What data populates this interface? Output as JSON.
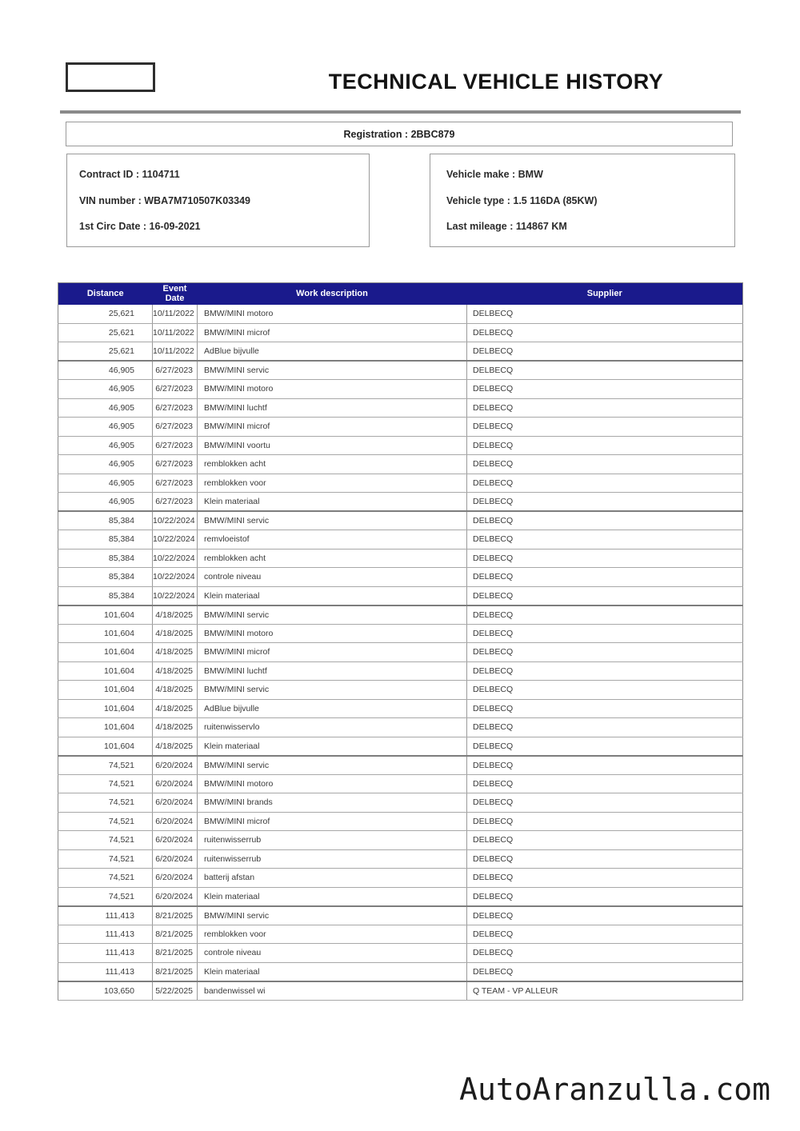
{
  "colors": {
    "header_bg": "#1a1a8c",
    "border_gray": "#9a9a9a",
    "rule_gray": "#8a8a8a"
  },
  "page": {
    "title": "TECHNICAL VEHICLE HISTORY",
    "watermark": "AutoAranzulla.com"
  },
  "registration": {
    "label": "Registration : 2BBC879"
  },
  "contract_info": {
    "lines": [
      "Contract ID : 1104711",
      "VIN number : WBA7M710507K03349",
      "1st Circ Date : 16-09-2021"
    ]
  },
  "vehicle_info": {
    "lines": [
      "Vehicle make : BMW",
      "Vehicle type : 1.5 116DA (85KW)",
      "Last mileage : 114867 KM"
    ]
  },
  "table": {
    "columns": [
      "Distance",
      "Event Date",
      "Work description",
      "Supplier"
    ],
    "rows": [
      {
        "distance": "25,621",
        "date": "10/11/2022",
        "work": "BMW/MINI motoro",
        "supplier": "DELBECQ"
      },
      {
        "distance": "25,621",
        "date": "10/11/2022",
        "work": "BMW/MINI microf",
        "supplier": "DELBECQ"
      },
      {
        "distance": "25,621",
        "date": "10/11/2022",
        "work": "AdBlue bijvulle",
        "supplier": "DELBECQ"
      },
      {
        "distance": "46,905",
        "date": "6/27/2023",
        "work": "BMW/MINI servic",
        "supplier": "DELBECQ"
      },
      {
        "distance": "46,905",
        "date": "6/27/2023",
        "work": "BMW/MINI motoro",
        "supplier": "DELBECQ"
      },
      {
        "distance": "46,905",
        "date": "6/27/2023",
        "work": "BMW/MINI luchtf",
        "supplier": "DELBECQ"
      },
      {
        "distance": "46,905",
        "date": "6/27/2023",
        "work": "BMW/MINI microf",
        "supplier": "DELBECQ"
      },
      {
        "distance": "46,905",
        "date": "6/27/2023",
        "work": "BMW/MINI voortu",
        "supplier": "DELBECQ"
      },
      {
        "distance": "46,905",
        "date": "6/27/2023",
        "work": "remblokken acht",
        "supplier": "DELBECQ"
      },
      {
        "distance": "46,905",
        "date": "6/27/2023",
        "work": "remblokken voor",
        "supplier": "DELBECQ"
      },
      {
        "distance": "46,905",
        "date": "6/27/2023",
        "work": "Klein materiaal",
        "supplier": "DELBECQ"
      },
      {
        "distance": "85,384",
        "date": "10/22/2024",
        "work": "BMW/MINI servic",
        "supplier": "DELBECQ"
      },
      {
        "distance": "85,384",
        "date": "10/22/2024",
        "work": "remvloeistof",
        "supplier": "DELBECQ"
      },
      {
        "distance": "85,384",
        "date": "10/22/2024",
        "work": "remblokken acht",
        "supplier": "DELBECQ"
      },
      {
        "distance": "85,384",
        "date": "10/22/2024",
        "work": "controle niveau",
        "supplier": "DELBECQ"
      },
      {
        "distance": "85,384",
        "date": "10/22/2024",
        "work": "Klein materiaal",
        "supplier": "DELBECQ"
      },
      {
        "distance": "101,604",
        "date": "4/18/2025",
        "work": "BMW/MINI servic",
        "supplier": "DELBECQ"
      },
      {
        "distance": "101,604",
        "date": "4/18/2025",
        "work": "BMW/MINI motoro",
        "supplier": "DELBECQ"
      },
      {
        "distance": "101,604",
        "date": "4/18/2025",
        "work": "BMW/MINI microf",
        "supplier": "DELBECQ"
      },
      {
        "distance": "101,604",
        "date": "4/18/2025",
        "work": "BMW/MINI luchtf",
        "supplier": "DELBECQ"
      },
      {
        "distance": "101,604",
        "date": "4/18/2025",
        "work": "BMW/MINI servic",
        "supplier": "DELBECQ"
      },
      {
        "distance": "101,604",
        "date": "4/18/2025",
        "work": "AdBlue bijvulle",
        "supplier": "DELBECQ"
      },
      {
        "distance": "101,604",
        "date": "4/18/2025",
        "work": "ruitenwisservlo",
        "supplier": "DELBECQ"
      },
      {
        "distance": "101,604",
        "date": "4/18/2025",
        "work": "Klein materiaal",
        "supplier": "DELBECQ"
      },
      {
        "distance": "74,521",
        "date": "6/20/2024",
        "work": "BMW/MINI servic",
        "supplier": "DELBECQ"
      },
      {
        "distance": "74,521",
        "date": "6/20/2024",
        "work": "BMW/MINI motoro",
        "supplier": "DELBECQ"
      },
      {
        "distance": "74,521",
        "date": "6/20/2024",
        "work": "BMW/MINI brands",
        "supplier": "DELBECQ"
      },
      {
        "distance": "74,521",
        "date": "6/20/2024",
        "work": "BMW/MINI microf",
        "supplier": "DELBECQ"
      },
      {
        "distance": "74,521",
        "date": "6/20/2024",
        "work": "ruitenwisserrub",
        "supplier": "DELBECQ"
      },
      {
        "distance": "74,521",
        "date": "6/20/2024",
        "work": "ruitenwisserrub",
        "supplier": "DELBECQ"
      },
      {
        "distance": "74,521",
        "date": "6/20/2024",
        "work": "batterij afstan",
        "supplier": "DELBECQ"
      },
      {
        "distance": "74,521",
        "date": "6/20/2024",
        "work": "Klein materiaal",
        "supplier": "DELBECQ"
      },
      {
        "distance": "111,413",
        "date": "8/21/2025",
        "work": "BMW/MINI servic",
        "supplier": "DELBECQ"
      },
      {
        "distance": "111,413",
        "date": "8/21/2025",
        "work": "remblokken voor",
        "supplier": "DELBECQ"
      },
      {
        "distance": "111,413",
        "date": "8/21/2025",
        "work": "controle niveau",
        "supplier": "DELBECQ"
      },
      {
        "distance": "111,413",
        "date": "8/21/2025",
        "work": "Klein materiaal",
        "supplier": "DELBECQ"
      },
      {
        "distance": "103,650",
        "date": "5/22/2025",
        "work": "bandenwissel wi",
        "supplier": "Q TEAM - VP ALLEUR"
      }
    ]
  }
}
